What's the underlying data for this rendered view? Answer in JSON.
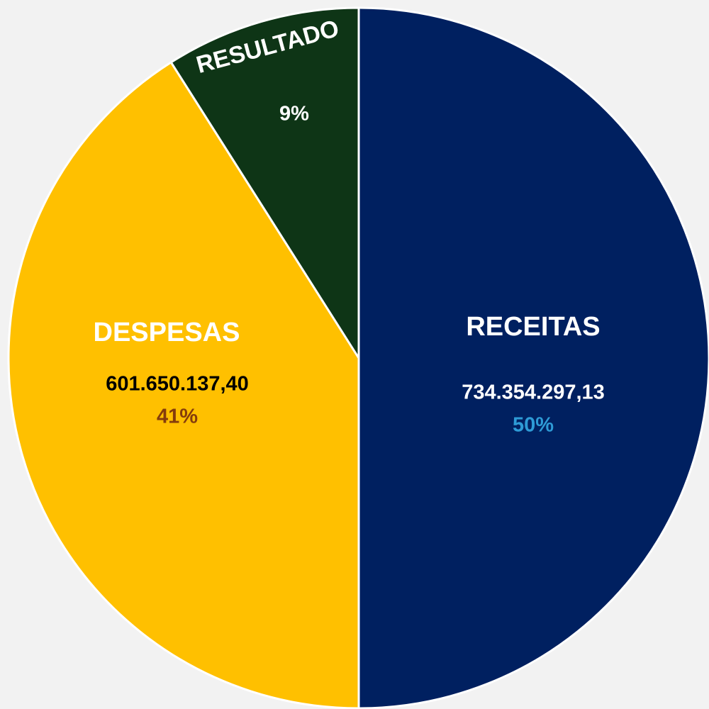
{
  "chart_data": {
    "type": "pie",
    "categories": [
      "RECEITAS",
      "DESPESAS",
      "RESULTADO"
    ],
    "values": [
      50,
      41,
      9
    ],
    "value_labels": [
      "50%",
      "41%",
      "9%"
    ],
    "amounts": [
      "734.354.297,13",
      "601.650.137,40",
      null
    ],
    "colors": [
      "#002060",
      "#ffc000",
      "#0e3516"
    ],
    "amount_colors": [
      "#ffffff",
      "#000000",
      "#ffffff"
    ],
    "percent_colors": [
      "#2e9bd6",
      "#843c0c",
      "#ffffff"
    ],
    "start_angle": 0,
    "direction": "clockwise"
  }
}
